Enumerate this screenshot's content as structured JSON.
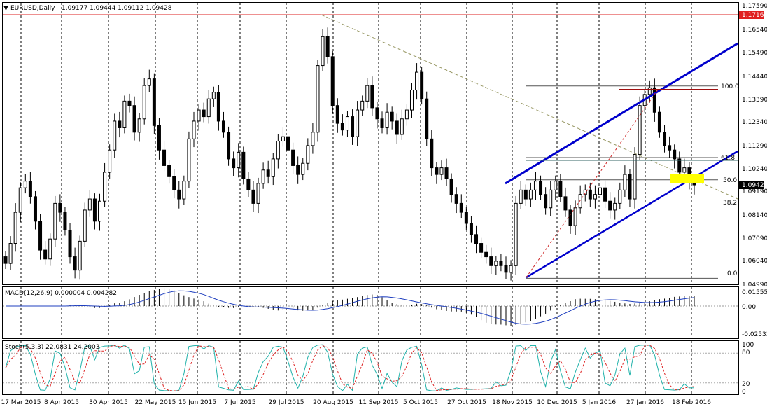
{
  "header": {
    "symbol": "EURUSD,Daily",
    "ohlc": "1.09177 1.09444 1.09112 1.09428",
    "macd_label": "MACD(12,26,9) 0.000004 0.004282",
    "stoch_label": "Stoch(5,3,3) 22.0831 24.2003"
  },
  "price_axis": {
    "ticks": [
      "1.17590",
      "1.16540",
      "1.15490",
      "1.14440",
      "1.13390",
      "1.12340",
      "1.11290",
      "1.10240",
      "1.09190",
      "1.08140",
      "1.07090",
      "1.06040",
      "1.04990"
    ],
    "marker_high": "1.17160",
    "marker_current": "1.09428"
  },
  "macd_axis": {
    "ticks": [
      "0.015556",
      "0.00",
      "-0.025334"
    ]
  },
  "stoch_axis": {
    "ticks": [
      "100",
      "80",
      "20",
      "0"
    ]
  },
  "time_axis": [
    "17 Mar 2015",
    "8 Apr 2015",
    "30 Apr 2015",
    "22 May 2015",
    "15 Jun 2015",
    "7 Jul 2015",
    "29 Jul 2015",
    "20 Aug 2015",
    "11 Sep 2015",
    "5 Oct 2015",
    "27 Oct 2015",
    "18 Nov 2015",
    "10 Dec 2015",
    "5 Jan 2016",
    "27 Jan 2016",
    "18 Feb 2016"
  ],
  "fib_labels": [
    "100.0",
    "61.8",
    "50.0",
    "38.2",
    "0.0"
  ],
  "chart_data": {
    "type": "candlestick",
    "symbol": "EURUSD",
    "timeframe": "Daily",
    "ylim": [
      1.0499,
      1.1759
    ],
    "annotations": {
      "high_line": 1.1716,
      "fibonacci": [
        {
          "level": "100.0",
          "price": 1.1388
        },
        {
          "level": "61.8",
          "price": 1.1066
        },
        {
          "level": "50.0",
          "price": 1.0966
        },
        {
          "level": "38.2",
          "price": 1.0866
        },
        {
          "level": "0.0",
          "price": 1.0523
        }
      ],
      "ascending_channel": true
    },
    "closes": [
      1.059,
      1.068,
      1.082,
      1.093,
      1.096,
      1.089,
      1.078,
      1.065,
      1.061,
      1.07,
      1.086,
      1.082,
      1.074,
      1.062,
      1.056,
      1.069,
      1.083,
      1.088,
      1.078,
      1.087,
      1.1,
      1.11,
      1.123,
      1.12,
      1.132,
      1.13,
      1.118,
      1.124,
      1.139,
      1.142,
      1.121,
      1.11,
      1.103,
      1.098,
      1.092,
      1.088,
      1.096,
      1.115,
      1.123,
      1.128,
      1.125,
      1.133,
      1.136,
      1.123,
      1.118,
      1.106,
      1.102,
      1.109,
      1.097,
      1.092,
      1.086,
      1.095,
      1.101,
      1.098,
      1.106,
      1.114,
      1.116,
      1.11,
      1.103,
      1.099,
      1.104,
      1.112,
      1.118,
      1.148,
      1.161,
      1.152,
      1.13,
      1.122,
      1.119,
      1.125,
      1.116,
      1.128,
      1.132,
      1.139,
      1.129,
      1.124,
      1.12,
      1.127,
      1.123,
      1.117,
      1.124,
      1.128,
      1.137,
      1.145,
      1.133,
      1.115,
      1.102,
      1.099,
      1.102,
      1.097,
      1.09,
      1.086,
      1.082,
      1.077,
      1.072,
      1.068,
      1.064,
      1.062,
      1.058,
      1.06,
      1.058,
      1.055,
      1.058,
      1.086,
      1.092,
      1.088,
      1.092,
      1.096,
      1.09,
      1.084,
      1.092,
      1.096,
      1.089,
      1.083,
      1.076,
      1.084,
      1.09,
      1.092,
      1.088,
      1.09,
      1.093,
      1.087,
      1.083,
      1.086,
      1.092,
      1.099,
      1.088,
      1.108,
      1.13,
      1.135,
      1.138,
      1.127,
      1.118,
      1.112,
      1.11,
      1.106,
      1.1,
      1.102,
      1.096,
      1.0943
    ]
  }
}
